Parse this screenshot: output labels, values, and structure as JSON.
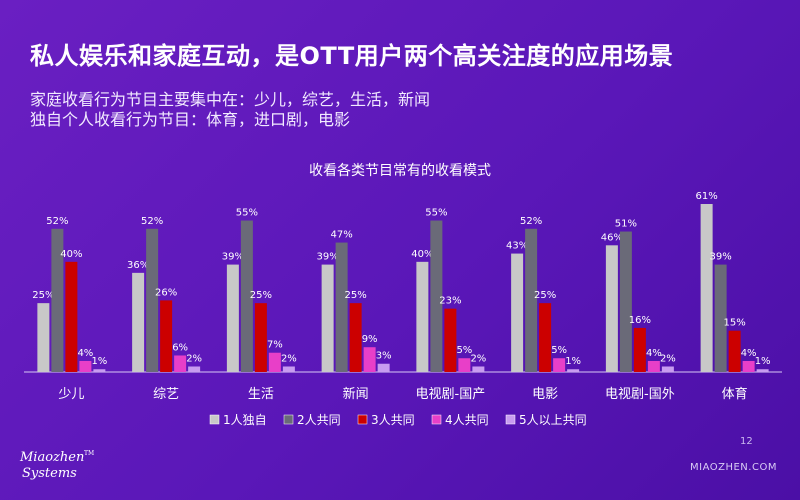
{
  "headline": "私人娱乐和家庭互动，是OTT用户两个高关注度的应用场景",
  "subtitle_1": "家庭收看行为节目主要集中在：少儿，综艺，生活，新闻",
  "subtitle_2": "独自个人收看行为节目：体育，进口剧，电影",
  "page_number": "12",
  "site": "MIAOZHEN.COM",
  "logo": {
    "line1": "Miaozhen",
    "line2": "Systems",
    "tm": "TM"
  },
  "colors": {
    "background": "#5a17b8",
    "s1": "#c8c8c8",
    "s2": "#6a6a78",
    "s3": "#cc0000",
    "s4": "#e83fc8",
    "s5": "#c89cf0"
  },
  "chart_data": {
    "type": "bar",
    "title": "收看各类节目常有的收看模式",
    "categories": [
      "少儿",
      "综艺",
      "生活",
      "新闻",
      "电视剧-国产",
      "电影",
      "电视剧-国外",
      "体育"
    ],
    "series": [
      {
        "name": "1人独自",
        "values": [
          25,
          36,
          39,
          39,
          40,
          43,
          46,
          61
        ],
        "labels": [
          "25%",
          "36%",
          "39%",
          "39%",
          "40%",
          "43%",
          "46%",
          "61%"
        ]
      },
      {
        "name": "2人共同",
        "values": [
          52,
          52,
          55,
          47,
          55,
          52,
          51,
          39
        ],
        "labels": [
          "52%",
          "52%",
          "55%",
          "47%",
          "55%",
          "52%",
          "51%",
          "39%"
        ]
      },
      {
        "name": "3人共同",
        "values": [
          40,
          26,
          25,
          25,
          23,
          25,
          16,
          15
        ],
        "labels": [
          "40%",
          "26%",
          "25%",
          "25%",
          "23%",
          "25%",
          "16%",
          "15%"
        ]
      },
      {
        "name": "4人共同",
        "values": [
          4,
          6,
          7,
          9,
          5,
          5,
          4,
          4
        ],
        "labels": [
          "4%",
          "6%",
          "7%",
          "9%",
          "5%",
          "5%",
          "4%",
          "4%"
        ]
      },
      {
        "name": "5人以上共同",
        "values": [
          1,
          2,
          2,
          3,
          2,
          1,
          2,
          1
        ],
        "labels": [
          "1%",
          "2%",
          "2%",
          "3%",
          "2%",
          "1%",
          "2%",
          "1%"
        ]
      }
    ],
    "ylim": [
      0,
      65
    ],
    "legend": "bottom"
  }
}
